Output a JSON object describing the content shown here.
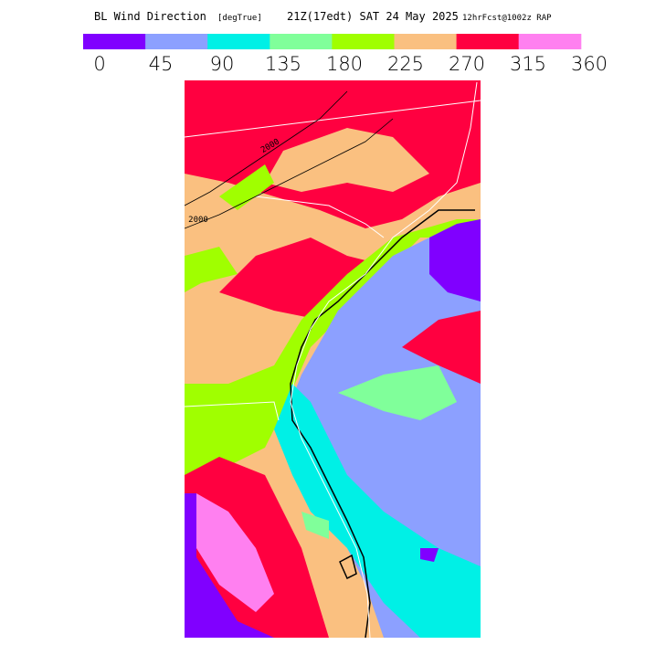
{
  "header": {
    "title": "BL Wind Direction",
    "units": "[degTrue]",
    "valid_time": "21Z(17edt) SAT 24 May 2025",
    "forecast": "12hrFcst@1002z RAP"
  },
  "colorbar": {
    "ticks": [
      0,
      45,
      90,
      135,
      180,
      225,
      270,
      315,
      360
    ],
    "colors": [
      "#8000ff",
      "#8ca0ff",
      "#00f0e6",
      "#80ff9a",
      "#a0ff00",
      "#fac080",
      "#ff0040",
      "#ff80f0"
    ]
  },
  "contour_labels": [
    2000,
    2000
  ]
}
